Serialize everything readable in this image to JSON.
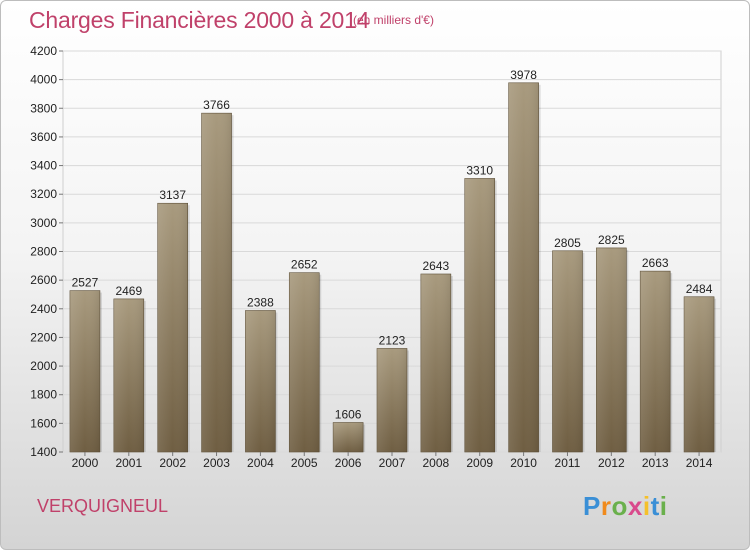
{
  "header": {
    "title": "Charges Financières 2000 à 2014",
    "subtitle": "(en milliers d'€)"
  },
  "footer": {
    "town": "VERQUIGNEUL",
    "logo": "Proxiti"
  },
  "colors": {
    "accent": "#c0416a",
    "bar_top": "#a89a7e",
    "bar_bottom": "#6f5e42"
  },
  "chart_data": {
    "type": "bar",
    "title": "Charges Financières 2000 à 2014",
    "subtitle": "(en milliers d'€)",
    "xlabel": "",
    "ylabel": "",
    "categories": [
      "2000",
      "2001",
      "2002",
      "2003",
      "2004",
      "2005",
      "2006",
      "2007",
      "2008",
      "2009",
      "2010",
      "2011",
      "2012",
      "2013",
      "2014"
    ],
    "values": [
      2527,
      2469,
      3137,
      3766,
      2388,
      2652,
      1606,
      2123,
      2643,
      3310,
      3978,
      2805,
      2825,
      2663,
      2484
    ],
    "ylim": [
      1400,
      4200
    ],
    "yticks": [
      1400,
      1600,
      1800,
      2000,
      2200,
      2400,
      2600,
      2800,
      3000,
      3200,
      3400,
      3600,
      3800,
      4000,
      4200
    ],
    "grid": true,
    "legend": "none"
  }
}
